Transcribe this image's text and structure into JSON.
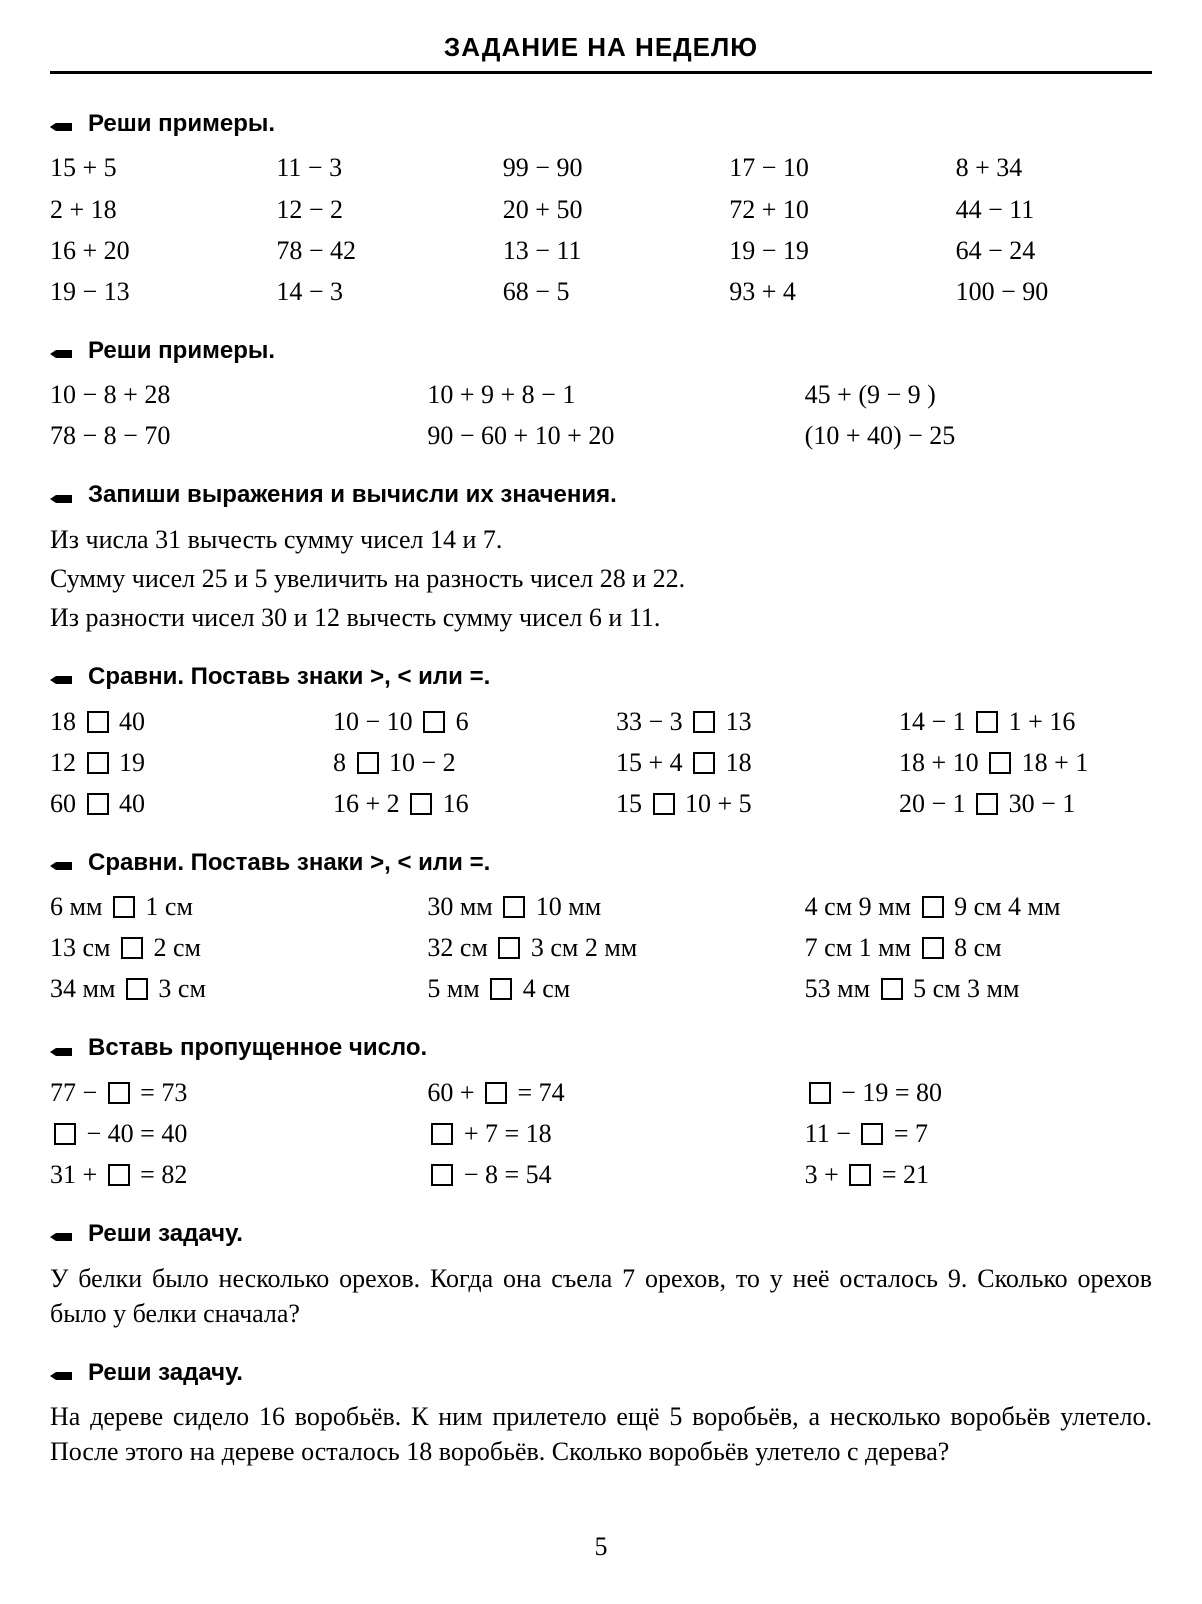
{
  "page": {
    "title": "ЗАДАНИЕ НА НЕДЕЛЮ",
    "number": "5",
    "font_size_body_pt": 26,
    "font_size_head_pt": 24,
    "background_color": "#ffffff",
    "text_color": "#000000",
    "rule_color": "#000000"
  },
  "icons": {
    "pencil_name": "pencil-icon"
  },
  "s1": {
    "heading": "Реши примеры.",
    "cols": 5,
    "rows": [
      [
        "15 + 5",
        "11 − 3",
        "99 − 90",
        "17 − 10",
        "8 + 34"
      ],
      [
        "2 + 18",
        "12 − 2",
        "20 + 50",
        "72 + 10",
        "44 − 11"
      ],
      [
        "16 + 20",
        "78 − 42",
        "13 − 11",
        "19 − 19",
        "64 − 24"
      ],
      [
        "19 − 13",
        "14 − 3",
        "68 − 5",
        "93 + 4",
        "100 − 90"
      ]
    ]
  },
  "s2": {
    "heading": "Реши примеры.",
    "cols": 3,
    "rows": [
      [
        "10 − 8 + 28",
        "10 + 9 + 8 − 1",
        "45 + (9 − 9 )"
      ],
      [
        "78 − 8 − 70",
        "90 − 60 + 10 + 20",
        "(10 + 40) − 25"
      ]
    ]
  },
  "s3": {
    "heading": "Запиши выражения и вычисли их значения.",
    "lines": [
      "Из числа 31 вычесть сумму чисел 14 и 7.",
      "Сумму чисел 25 и 5 увеличить на разность чисел 28 и 22.",
      "Из разности чисел 30 и 12 вычесть сумму чисел 6 и 11."
    ]
  },
  "s4": {
    "heading": "Сравни. Поставь знаки >, < или =.",
    "cols": 4,
    "rows": [
      [
        {
          "l": "18",
          "r": "40"
        },
        {
          "l": "10 − 10",
          "r": "6"
        },
        {
          "l": "33 − 3",
          "r": "13"
        },
        {
          "l": "14 − 1",
          "r": "1 + 16"
        }
      ],
      [
        {
          "l": "12",
          "r": "19"
        },
        {
          "l": "8",
          "r": "10 − 2"
        },
        {
          "l": "15 + 4",
          "r": "18"
        },
        {
          "l": "18 + 10",
          "r": "18 + 1"
        }
      ],
      [
        {
          "l": "60",
          "r": "40"
        },
        {
          "l": "16 + 2",
          "r": "16"
        },
        {
          "l": "15",
          "r": "10 + 5"
        },
        {
          "l": "20 − 1",
          "r": "30 − 1"
        }
      ]
    ]
  },
  "s5": {
    "heading": "Сравни. Поставь знаки >, < или =.",
    "cols": 3,
    "rows": [
      [
        {
          "l": "6 мм",
          "r": "1 см"
        },
        {
          "l": "30 мм",
          "r": "10 мм"
        },
        {
          "l": "4 см 9 мм",
          "r": "9 см 4 мм"
        }
      ],
      [
        {
          "l": "13 см",
          "r": "2 см"
        },
        {
          "l": "32 см",
          "r": "3 см 2 мм"
        },
        {
          "l": "7 см 1 мм",
          "r": "8 см"
        }
      ],
      [
        {
          "l": "34 мм",
          "r": "3 см"
        },
        {
          "l": "5 мм",
          "r": "4 см"
        },
        {
          "l": "53 мм",
          "r": "5 см 3 мм"
        }
      ]
    ]
  },
  "s6": {
    "heading": "Вставь пропущенное число.",
    "cols": 3,
    "rows": [
      [
        {
          "pre": "77 − ",
          "post": " = 73"
        },
        {
          "pre": "60 + ",
          "post": " = 74"
        },
        {
          "pre": "",
          "post": " − 19 = 80"
        }
      ],
      [
        {
          "pre": "",
          "post": " − 40 = 40"
        },
        {
          "pre": "",
          "post": " + 7 = 18"
        },
        {
          "pre": "11 − ",
          "post": " = 7"
        }
      ],
      [
        {
          "pre": "31 + ",
          "post": " = 82"
        },
        {
          "pre": "",
          "post": " − 8 = 54"
        },
        {
          "pre": "3 + ",
          "post": " = 21"
        }
      ]
    ]
  },
  "s7": {
    "heading": "Реши задачу.",
    "text": "У белки было несколько орехов. Когда она съела 7 орехов, то у неё осталось 9. Сколько орехов было у белки сначала?"
  },
  "s8": {
    "heading": "Реши задачу.",
    "text": "На дереве сидело 16 воробьёв. К ним прилетело ещё 5 воробьёв, а несколько воробьёв улетело. После этого на дереве осталось 18 воробьёв. Сколько воробьёв улетело с дерева?"
  }
}
